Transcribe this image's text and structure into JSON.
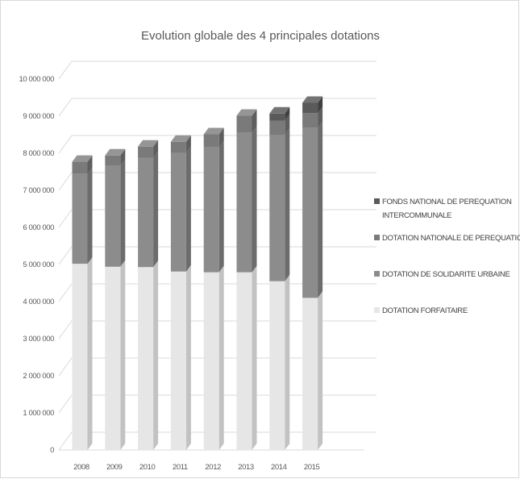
{
  "chart_data": {
    "type": "bar",
    "stacked": true,
    "three_d": true,
    "title": "Evolution globale des 4 principales dotations",
    "xlabel": "",
    "ylabel": "",
    "categories": [
      "2008",
      "2009",
      "2010",
      "2011",
      "2012",
      "2013",
      "2014",
      "2015"
    ],
    "ylim": [
      0,
      10000000
    ],
    "yticks": [
      0,
      1000000,
      2000000,
      3000000,
      4000000,
      5000000,
      6000000,
      7000000,
      8000000,
      9000000,
      10000000
    ],
    "ytick_labels": [
      "0",
      "1 000 000",
      "2 000 000",
      "3 000 000",
      "4 000 000",
      "5 000 000",
      "6 000 000",
      "7 000 000",
      "8 000 000",
      "9 000 000",
      "10 000 000"
    ],
    "grid": true,
    "legend_position": "right",
    "series": [
      {
        "name": "DOTATION FORFAITAIRE",
        "color": "#e6e6e6",
        "side_color": "#c2c2c2",
        "top_color": "#f0f0f0",
        "values": [
          5020000,
          4940000,
          4930000,
          4810000,
          4790000,
          4790000,
          4550000,
          4100000
        ]
      },
      {
        "name": "DOTATION DE SOLIDARITE URBAINE",
        "color": "#8c8c8c",
        "side_color": "#6c6c6c",
        "top_color": "#a6a6a6",
        "values": [
          2420000,
          2720000,
          2950000,
          3200000,
          3370000,
          3760000,
          3950000,
          4580000
        ]
      },
      {
        "name": "DOTATION NATIONALE DE PEREQUATION",
        "color": "#7a7a7a",
        "side_color": "#5e5e5e",
        "top_color": "#959595",
        "values": [
          330000,
          280000,
          300000,
          300000,
          350000,
          460000,
          380000,
          400000
        ]
      },
      {
        "name": "FONDS NATIONAL DE PEREQUATION INTERCOMMUNALE",
        "legend_lines": [
          "FONDS NATIONAL DE PEREQUATION",
          "INTERCOMMUNALE"
        ],
        "color": "#5a5a5a",
        "side_color": "#404040",
        "top_color": "#737373",
        "values": [
          0,
          0,
          0,
          0,
          0,
          0,
          190000,
          280000
        ]
      }
    ],
    "legend_order": [
      3,
      2,
      1,
      0
    ]
  }
}
